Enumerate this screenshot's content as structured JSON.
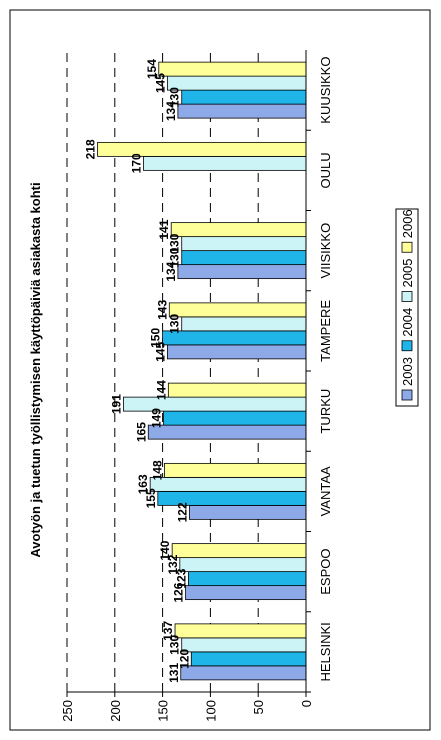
{
  "chart_data": {
    "type": "bar",
    "orientation": "horizontal",
    "image_rotation": "chart rotated 90 degrees clockwise",
    "title": "Avotyön ja tuetun työllistymisen käyttöpäiviä asiakasta kohti",
    "xlabel": "",
    "ylabel": "",
    "ylim": [
      0,
      250
    ],
    "ticks": [
      "0",
      "50",
      "100",
      "150",
      "200",
      "250"
    ],
    "grid": true,
    "legend_position": "right",
    "categories": [
      "HELSINKI",
      "ESPOO",
      "VANTAA",
      "TURKU",
      "TAMPERE",
      "VIISIKKO",
      "OULU",
      "KUUSIKKO"
    ],
    "series": [
      {
        "name": "2003",
        "color": "#8EA9E8",
        "values": [
          131,
          126,
          122,
          165,
          145,
          134,
          null,
          134
        ]
      },
      {
        "name": "2004",
        "color": "#1FB5E8",
        "values": [
          120,
          123,
          155,
          149,
          150,
          130,
          null,
          130
        ]
      },
      {
        "name": "2005",
        "color": "#CCF4F7",
        "values": [
          130,
          132,
          163,
          191,
          130,
          130,
          170,
          145
        ]
      },
      {
        "name": "2006",
        "color": "#FFFF99",
        "values": [
          137,
          140,
          148,
          144,
          143,
          141,
          218,
          154
        ]
      }
    ]
  }
}
